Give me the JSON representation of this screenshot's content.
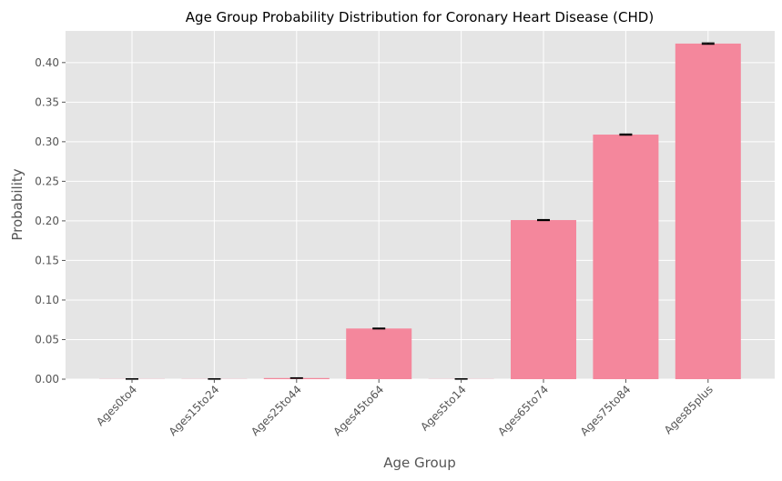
{
  "chart_data": {
    "type": "bar",
    "title": "Age Group Probability Distribution for Coronary Heart Disease (CHD)",
    "xlabel": "Age Group",
    "ylabel": "Probability",
    "categories": [
      "Ages0to4",
      "Ages15to24",
      "Ages25to44",
      "Ages45to64",
      "Ages5to14",
      "Ages65to74",
      "Ages75to84",
      "Ages85plus"
    ],
    "values": [
      0.0002,
      0.0002,
      0.0014,
      0.064,
      0.0002,
      0.201,
      0.309,
      0.424
    ],
    "error": [
      0.0003,
      0.0003,
      0.0003,
      0.0005,
      0.0003,
      0.0006,
      0.0007,
      0.0008
    ],
    "ylim": [
      0,
      0.44
    ],
    "yticks": [
      "0.00",
      "0.05",
      "0.10",
      "0.15",
      "0.20",
      "0.25",
      "0.30",
      "0.35",
      "0.40"
    ],
    "grid": true,
    "colors": {
      "bar": "#f4879c",
      "background": "#e5e5e5",
      "grid": "#ffffff",
      "errorbar": "#000000"
    }
  }
}
